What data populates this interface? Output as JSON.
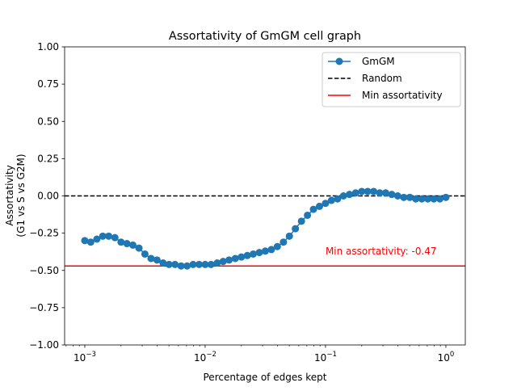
{
  "chart_data": {
    "type": "line",
    "title": "Assortativity of GmGM cell graph",
    "xlabel": "Percentage of edges kept",
    "ylabel_lines": [
      "Assortativity",
      "(G1 vs S vs G2M)"
    ],
    "xscale": "log",
    "xlim": [
      0.00068,
      1.45
    ],
    "ylim": [
      -1.0,
      1.0
    ],
    "xticks": [
      {
        "value": 0.001,
        "base": "10",
        "exp": "−3"
      },
      {
        "value": 0.01,
        "base": "10",
        "exp": "−2"
      },
      {
        "value": 0.1,
        "base": "10",
        "exp": "−1"
      },
      {
        "value": 1,
        "base": "10",
        "exp": "0"
      }
    ],
    "yticks": [
      {
        "value": 1.0,
        "label": "1.00"
      },
      {
        "value": 0.75,
        "label": "0.75"
      },
      {
        "value": 0.5,
        "label": "0.50"
      },
      {
        "value": 0.25,
        "label": "0.25"
      },
      {
        "value": 0.0,
        "label": "0.00"
      },
      {
        "value": -0.25,
        "label": "−0.25"
      },
      {
        "value": -0.5,
        "label": "−0.50"
      },
      {
        "value": -0.75,
        "label": "−0.75"
      },
      {
        "value": -1.0,
        "label": "−1.00"
      }
    ],
    "grid": false,
    "legend_position": "upper right",
    "series": [
      {
        "name": "GmGM",
        "color": "#1f77b4",
        "marker": "circle",
        "x": [
          0.001,
          0.00112,
          0.00126,
          0.00141,
          0.00158,
          0.00178,
          0.002,
          0.00224,
          0.00251,
          0.00282,
          0.00316,
          0.00355,
          0.00398,
          0.00447,
          0.00501,
          0.00562,
          0.00631,
          0.00708,
          0.00794,
          0.00891,
          0.01,
          0.0112,
          0.0126,
          0.0141,
          0.0158,
          0.0178,
          0.02,
          0.0224,
          0.0251,
          0.0282,
          0.0316,
          0.0355,
          0.0398,
          0.0447,
          0.0501,
          0.0562,
          0.0631,
          0.0708,
          0.0794,
          0.0891,
          0.1,
          0.112,
          0.126,
          0.141,
          0.158,
          0.178,
          0.2,
          0.224,
          0.251,
          0.282,
          0.316,
          0.355,
          0.398,
          0.447,
          0.501,
          0.562,
          0.631,
          0.708,
          0.794,
          0.891,
          1.0
        ],
        "y": [
          -0.3,
          -0.31,
          -0.29,
          -0.27,
          -0.27,
          -0.28,
          -0.31,
          -0.32,
          -0.33,
          -0.35,
          -0.39,
          -0.42,
          -0.43,
          -0.45,
          -0.46,
          -0.46,
          -0.47,
          -0.47,
          -0.46,
          -0.46,
          -0.46,
          -0.46,
          -0.45,
          -0.44,
          -0.43,
          -0.42,
          -0.41,
          -0.4,
          -0.39,
          -0.38,
          -0.37,
          -0.36,
          -0.34,
          -0.31,
          -0.27,
          -0.22,
          -0.17,
          -0.13,
          -0.09,
          -0.07,
          -0.05,
          -0.03,
          -0.02,
          0.0,
          0.01,
          0.02,
          0.03,
          0.03,
          0.03,
          0.02,
          0.02,
          0.01,
          0.0,
          -0.01,
          -0.01,
          -0.02,
          -0.02,
          -0.02,
          -0.02,
          -0.02,
          -0.01
        ]
      },
      {
        "name": "Random",
        "color": "#000000",
        "style": "dashed",
        "y_constant": 0.0
      },
      {
        "name": "Min assortativity",
        "color": "#ff0000",
        "style": "solid",
        "y_constant": -0.47
      }
    ],
    "annotations": [
      {
        "text": "Min assortativity: -0.47",
        "x": 0.1,
        "y": -0.37,
        "color": "#ff0000"
      }
    ]
  }
}
